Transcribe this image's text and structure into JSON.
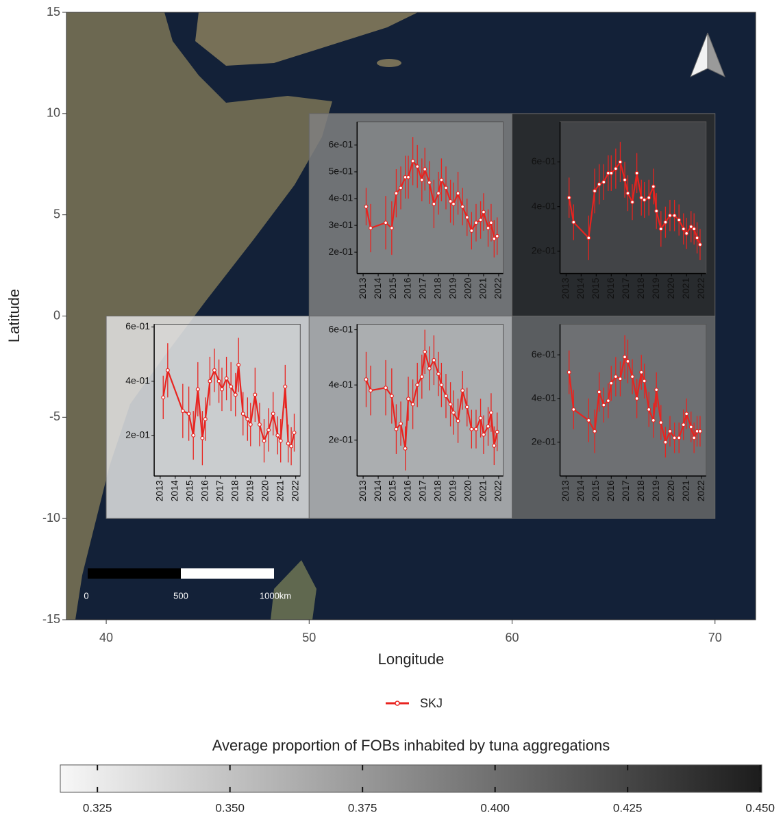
{
  "map": {
    "xlabel": "Longitude",
    "ylabel": "Latitude",
    "xlim": [
      38.04,
      72.0
    ],
    "ylim": [
      -15,
      15
    ],
    "xticks": [
      40,
      50,
      60,
      70
    ],
    "yticks": [
      -15,
      -10,
      -5,
      0,
      5,
      10,
      15
    ]
  },
  "scale_bar": {
    "labels": [
      "0",
      "500",
      "1000km"
    ]
  },
  "legend": {
    "name": "SKJ",
    "color": "#e8231f"
  },
  "colorbar": {
    "title": "Average proportion of FOBs inhabited by tuna aggregations",
    "lim": [
      0.318,
      0.4503
    ],
    "ticks": [
      0.325,
      {
        "value": 0.35,
        "label": "0.350"
      },
      0.375,
      {
        "value": 0.4,
        "label": "0.400"
      },
      0.425,
      {
        "value": 0.45,
        "label": "0.450"
      }
    ]
  },
  "chart_data": [
    {
      "type": "line",
      "cell": {
        "lon": [
          50,
          60
        ],
        "lat": [
          0,
          10
        ],
        "value": 0.39
      },
      "xlim": [
        2012.6,
        2022.3
      ],
      "xticks": [
        2013,
        2014,
        2015,
        2016,
        2017,
        2018,
        2019,
        2020,
        2021,
        2022
      ],
      "ylim": [
        0.12,
        0.687
      ],
      "yticks": [
        {
          "value": 0.2,
          "label": "2e-01"
        },
        {
          "value": 0.3,
          "label": "3e-01"
        },
        {
          "value": 0.4,
          "label": "4e-01"
        },
        {
          "value": 0.5,
          "label": "5e-01"
        },
        {
          "value": 0.6,
          "label": "6e-01"
        }
      ],
      "x": [
        2013.2,
        2013.5,
        2014.5,
        2014.9,
        2015.2,
        2015.5,
        2015.8,
        2016.0,
        2016.3,
        2016.6,
        2016.9,
        2017.1,
        2017.4,
        2017.7,
        2018.0,
        2018.2,
        2018.5,
        2018.8,
        2019.0,
        2019.3,
        2019.6,
        2019.9,
        2020.2,
        2020.5,
        2020.8,
        2021.0,
        2021.3,
        2021.5,
        2021.7,
        2021.9
      ],
      "series": [
        {
          "color": "#e8231f",
          "values": [
            0.37,
            0.29,
            0.31,
            0.29,
            0.42,
            0.44,
            0.48,
            0.48,
            0.54,
            0.52,
            0.47,
            0.51,
            0.46,
            0.38,
            0.42,
            0.47,
            0.44,
            0.39,
            0.38,
            0.42,
            0.37,
            0.33,
            0.28,
            0.31,
            0.32,
            0.35,
            0.29,
            0.31,
            0.25,
            0.26
          ],
          "errors": [
            0.07,
            0.09,
            0.1,
            0.1,
            0.09,
            0.08,
            0.08,
            0.08,
            0.09,
            0.08,
            0.08,
            0.08,
            0.08,
            0.09,
            0.08,
            0.08,
            0.08,
            0.08,
            0.08,
            0.08,
            0.07,
            0.07,
            0.07,
            0.07,
            0.07,
            0.07,
            0.07,
            0.07,
            0.07,
            0.07
          ]
        }
      ]
    },
    {
      "type": "line",
      "cell": {
        "lon": [
          60,
          70
        ],
        "lat": [
          0,
          10
        ],
        "value": 0.44
      },
      "xlim": [
        2012.6,
        2022.3
      ],
      "xticks": [
        2013,
        2014,
        2015,
        2016,
        2017,
        2018,
        2019,
        2020,
        2021,
        2022
      ],
      "ylim": [
        0.1,
        0.78
      ],
      "yticks": [
        {
          "value": 0.2,
          "label": "2e-01"
        },
        {
          "value": 0.4,
          "label": "4e-01"
        },
        {
          "value": 0.6,
          "label": "6e-01"
        }
      ],
      "x": [
        2013.2,
        2013.5,
        2014.5,
        2014.9,
        2015.2,
        2015.5,
        2015.8,
        2016.0,
        2016.3,
        2016.6,
        2016.9,
        2017.1,
        2017.4,
        2017.7,
        2018.0,
        2018.2,
        2018.5,
        2018.8,
        2019.0,
        2019.3,
        2019.6,
        2019.9,
        2020.2,
        2020.5,
        2020.8,
        2021.0,
        2021.3,
        2021.5,
        2021.7,
        2021.9
      ],
      "series": [
        {
          "color": "#e8231f",
          "values": [
            0.44,
            0.33,
            0.26,
            0.47,
            0.5,
            0.51,
            0.55,
            0.55,
            0.57,
            0.6,
            0.52,
            0.46,
            0.42,
            0.55,
            0.44,
            0.43,
            0.44,
            0.49,
            0.38,
            0.3,
            0.33,
            0.36,
            0.36,
            0.34,
            0.3,
            0.28,
            0.31,
            0.3,
            0.26,
            0.23
          ],
          "errors": [
            0.09,
            0.08,
            0.1,
            0.1,
            0.09,
            0.08,
            0.08,
            0.08,
            0.09,
            0.09,
            0.08,
            0.08,
            0.08,
            0.09,
            0.08,
            0.08,
            0.08,
            0.08,
            0.08,
            0.08,
            0.07,
            0.07,
            0.07,
            0.07,
            0.07,
            0.07,
            0.07,
            0.07,
            0.07,
            0.07
          ]
        }
      ]
    },
    {
      "type": "line",
      "cell": {
        "lon": [
          40,
          50
        ],
        "lat": [
          -10,
          0
        ],
        "value": 0.33
      },
      "xlim": [
        2012.6,
        2022.3
      ],
      "xticks": [
        2013,
        2014,
        2015,
        2016,
        2017,
        2018,
        2019,
        2020,
        2021,
        2022
      ],
      "ylim": [
        0.05,
        0.61
      ],
      "yticks": [
        {
          "value": 0.2,
          "label": "2e-01"
        },
        {
          "value": 0.4,
          "label": "4e-01"
        },
        {
          "value": 0.6,
          "label": "6e-01"
        }
      ],
      "x": [
        2013.2,
        2013.5,
        2014.5,
        2014.9,
        2015.2,
        2015.5,
        2015.8,
        2016.0,
        2016.3,
        2016.6,
        2016.9,
        2017.1,
        2017.4,
        2017.7,
        2018.0,
        2018.2,
        2018.5,
        2018.8,
        2019.0,
        2019.3,
        2019.6,
        2019.9,
        2020.2,
        2020.5,
        2020.8,
        2021.0,
        2021.3,
        2021.5,
        2021.7,
        2021.9
      ],
      "series": [
        {
          "color": "#e8231f",
          "values": [
            0.34,
            0.44,
            0.29,
            0.28,
            0.2,
            0.37,
            0.19,
            0.26,
            0.4,
            0.44,
            0.4,
            0.37,
            0.41,
            0.38,
            0.35,
            0.46,
            0.28,
            0.26,
            0.24,
            0.35,
            0.24,
            0.18,
            0.22,
            0.28,
            0.2,
            0.18,
            0.38,
            0.17,
            0.16,
            0.21
          ],
          "errors": [
            0.08,
            0.1,
            0.1,
            0.1,
            0.09,
            0.1,
            0.1,
            0.08,
            0.09,
            0.08,
            0.08,
            0.08,
            0.08,
            0.09,
            0.08,
            0.1,
            0.08,
            0.08,
            0.08,
            0.1,
            0.08,
            0.08,
            0.08,
            0.08,
            0.07,
            0.08,
            0.08,
            0.07,
            0.07,
            0.07
          ]
        }
      ]
    },
    {
      "type": "line",
      "cell": {
        "lon": [
          50,
          60
        ],
        "lat": [
          -10,
          0
        ],
        "value": 0.355
      },
      "xlim": [
        2012.6,
        2022.3
      ],
      "xticks": [
        2013,
        2014,
        2015,
        2016,
        2017,
        2018,
        2019,
        2020,
        2021,
        2022
      ],
      "ylim": [
        0.07,
        0.62
      ],
      "yticks": [
        {
          "value": 0.2,
          "label": "2e-01"
        },
        {
          "value": 0.4,
          "label": "4e-01"
        },
        {
          "value": 0.6,
          "label": "6e-01"
        }
      ],
      "x": [
        2013.2,
        2013.5,
        2014.5,
        2014.9,
        2015.2,
        2015.5,
        2015.8,
        2016.0,
        2016.3,
        2016.6,
        2016.9,
        2017.1,
        2017.4,
        2017.7,
        2018.0,
        2018.2,
        2018.5,
        2018.8,
        2019.0,
        2019.3,
        2019.6,
        2019.9,
        2020.2,
        2020.5,
        2020.8,
        2021.0,
        2021.3,
        2021.5,
        2021.7,
        2021.9
      ],
      "series": [
        {
          "color": "#e8231f",
          "values": [
            0.42,
            0.38,
            0.39,
            0.36,
            0.24,
            0.26,
            0.17,
            0.35,
            0.33,
            0.4,
            0.43,
            0.52,
            0.46,
            0.49,
            0.44,
            0.4,
            0.36,
            0.33,
            0.3,
            0.27,
            0.38,
            0.32,
            0.24,
            0.24,
            0.28,
            0.22,
            0.25,
            0.3,
            0.18,
            0.23
          ],
          "errors": [
            0.1,
            0.09,
            0.1,
            0.1,
            0.09,
            0.08,
            0.08,
            0.08,
            0.09,
            0.08,
            0.08,
            0.08,
            0.08,
            0.09,
            0.08,
            0.08,
            0.08,
            0.08,
            0.08,
            0.08,
            0.07,
            0.07,
            0.07,
            0.07,
            0.07,
            0.07,
            0.07,
            0.07,
            0.07,
            0.07
          ]
        }
      ]
    },
    {
      "type": "line",
      "cell": {
        "lon": [
          60,
          70
        ],
        "lat": [
          -10,
          0
        ],
        "value": 0.405
      },
      "xlim": [
        2012.6,
        2022.3
      ],
      "xticks": [
        2013,
        2014,
        2015,
        2016,
        2017,
        2018,
        2019,
        2020,
        2021,
        2022
      ],
      "ylim": [
        0.045,
        0.74
      ],
      "yticks": [
        {
          "value": 0.2,
          "label": "2e-01"
        },
        {
          "value": 0.4,
          "label": "4e-01"
        },
        {
          "value": 0.6,
          "label": "6e-01"
        }
      ],
      "x": [
        2013.2,
        2013.5,
        2014.5,
        2014.9,
        2015.2,
        2015.5,
        2015.8,
        2016.0,
        2016.3,
        2016.6,
        2016.9,
        2017.1,
        2017.4,
        2017.7,
        2018.0,
        2018.2,
        2018.5,
        2018.8,
        2019.0,
        2019.3,
        2019.6,
        2019.9,
        2020.2,
        2020.5,
        2020.8,
        2021.0,
        2021.3,
        2021.5,
        2021.7,
        2021.9
      ],
      "series": [
        {
          "color": "#e8231f",
          "values": [
            0.52,
            0.35,
            0.3,
            0.25,
            0.43,
            0.37,
            0.39,
            0.47,
            0.5,
            0.49,
            0.59,
            0.57,
            0.5,
            0.4,
            0.52,
            0.48,
            0.35,
            0.3,
            0.44,
            0.29,
            0.2,
            0.25,
            0.22,
            0.22,
            0.28,
            0.33,
            0.27,
            0.22,
            0.25,
            0.25
          ],
          "errors": [
            0.1,
            0.09,
            0.1,
            0.1,
            0.09,
            0.08,
            0.08,
            0.08,
            0.09,
            0.08,
            0.1,
            0.1,
            0.08,
            0.09,
            0.08,
            0.08,
            0.08,
            0.08,
            0.08,
            0.08,
            0.07,
            0.07,
            0.07,
            0.07,
            0.07,
            0.07,
            0.07,
            0.07,
            0.07,
            0.07
          ]
        }
      ]
    }
  ]
}
